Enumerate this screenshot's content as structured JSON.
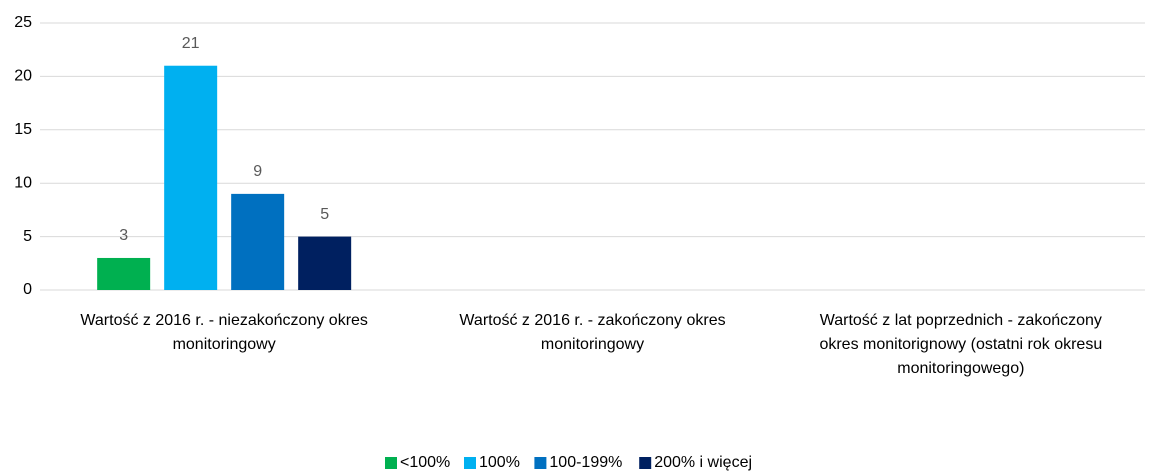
{
  "chart_data": {
    "type": "bar",
    "categories": [
      "Wartość z 2016 r. - niezakończony okres monitoringowy",
      "Wartość z 2016 r. - zakończony okres monitoringowy",
      "Wartość z lat poprzednich - zakończony okres monitorignowy (ostatni rok okresu monitoringowego)"
    ],
    "series": [
      {
        "name": "<100%",
        "color": "#00b050",
        "values": [
          3,
          null,
          null
        ]
      },
      {
        "name": "100%",
        "color": "#00b0f0",
        "values": [
          21,
          null,
          null
        ]
      },
      {
        "name": "100-199%",
        "color": "#0070c0",
        "values": [
          9,
          null,
          null
        ]
      },
      {
        "name": "200% i więcej",
        "color": "#002060",
        "values": [
          5,
          null,
          null
        ]
      }
    ],
    "ylim": [
      0,
      25
    ],
    "yticks": [
      0,
      5,
      10,
      15,
      20,
      25
    ],
    "grid": true,
    "legend": "bottom"
  }
}
